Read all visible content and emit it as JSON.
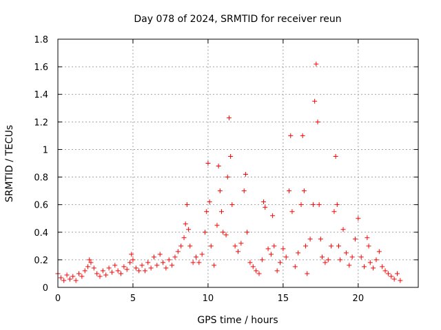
{
  "chart_data": {
    "type": "scatter",
    "title": "Day 078 of 2024, SRMTID for receiver reun",
    "xlabel": "GPS time / hours",
    "ylabel": "SRMTID / TECUs",
    "xlim": [
      0,
      24
    ],
    "ylim": [
      0,
      1.8
    ],
    "xticks": [
      0,
      5,
      10,
      15,
      20
    ],
    "xtick_labels": [
      "0",
      "5",
      "10",
      "15",
      "20"
    ],
    "yticks": [
      0,
      0.2,
      0.4,
      0.6,
      0.8,
      1.0,
      1.2,
      1.4,
      1.6,
      1.8
    ],
    "ytick_labels": [
      "0",
      "0.2",
      "0.4",
      "0.6",
      "0.8",
      "1",
      "1.2",
      "1.4",
      "1.6",
      "1.8"
    ],
    "grid": true,
    "marker": "+",
    "color": "#ff0000",
    "series": [
      {
        "name": "SRMTID",
        "points": [
          [
            0.0,
            0.1
          ],
          [
            0.2,
            0.07
          ],
          [
            0.4,
            0.05
          ],
          [
            0.6,
            0.09
          ],
          [
            0.8,
            0.06
          ],
          [
            1.0,
            0.08
          ],
          [
            1.2,
            0.05
          ],
          [
            1.4,
            0.1
          ],
          [
            1.6,
            0.08
          ],
          [
            1.8,
            0.12
          ],
          [
            2.0,
            0.15
          ],
          [
            2.1,
            0.2
          ],
          [
            2.2,
            0.18
          ],
          [
            2.4,
            0.14
          ],
          [
            2.6,
            0.1
          ],
          [
            2.8,
            0.08
          ],
          [
            3.0,
            0.12
          ],
          [
            3.2,
            0.09
          ],
          [
            3.4,
            0.14
          ],
          [
            3.6,
            0.11
          ],
          [
            3.8,
            0.16
          ],
          [
            4.0,
            0.12
          ],
          [
            4.2,
            0.1
          ],
          [
            4.4,
            0.15
          ],
          [
            4.6,
            0.13
          ],
          [
            4.8,
            0.18
          ],
          [
            4.9,
            0.24
          ],
          [
            5.0,
            0.2
          ],
          [
            5.2,
            0.14
          ],
          [
            5.4,
            0.12
          ],
          [
            5.6,
            0.16
          ],
          [
            5.8,
            0.12
          ],
          [
            6.0,
            0.18
          ],
          [
            6.2,
            0.14
          ],
          [
            6.4,
            0.22
          ],
          [
            6.6,
            0.16
          ],
          [
            6.8,
            0.24
          ],
          [
            7.0,
            0.18
          ],
          [
            7.2,
            0.14
          ],
          [
            7.4,
            0.2
          ],
          [
            7.6,
            0.16
          ],
          [
            7.8,
            0.22
          ],
          [
            8.0,
            0.26
          ],
          [
            8.2,
            0.3
          ],
          [
            8.4,
            0.36
          ],
          [
            8.5,
            0.46
          ],
          [
            8.6,
            0.6
          ],
          [
            8.7,
            0.42
          ],
          [
            8.8,
            0.3
          ],
          [
            9.0,
            0.18
          ],
          [
            9.2,
            0.22
          ],
          [
            9.4,
            0.18
          ],
          [
            9.6,
            0.24
          ],
          [
            9.8,
            0.4
          ],
          [
            9.9,
            0.55
          ],
          [
            10.0,
            0.9
          ],
          [
            10.1,
            0.62
          ],
          [
            10.2,
            0.3
          ],
          [
            10.4,
            0.16
          ],
          [
            10.6,
            0.45
          ],
          [
            10.7,
            0.88
          ],
          [
            10.8,
            0.7
          ],
          [
            10.9,
            0.55
          ],
          [
            11.0,
            0.4
          ],
          [
            11.2,
            0.38
          ],
          [
            11.3,
            0.8
          ],
          [
            11.4,
            1.23
          ],
          [
            11.5,
            0.95
          ],
          [
            11.6,
            0.6
          ],
          [
            11.8,
            0.3
          ],
          [
            12.0,
            0.26
          ],
          [
            12.2,
            0.32
          ],
          [
            12.4,
            0.7
          ],
          [
            12.5,
            0.82
          ],
          [
            12.6,
            0.4
          ],
          [
            12.8,
            0.18
          ],
          [
            13.0,
            0.15
          ],
          [
            13.2,
            0.12
          ],
          [
            13.4,
            0.1
          ],
          [
            13.6,
            0.2
          ],
          [
            13.7,
            0.62
          ],
          [
            13.8,
            0.58
          ],
          [
            14.0,
            0.28
          ],
          [
            14.2,
            0.24
          ],
          [
            14.3,
            0.52
          ],
          [
            14.4,
            0.3
          ],
          [
            14.6,
            0.12
          ],
          [
            14.8,
            0.18
          ],
          [
            15.0,
            0.28
          ],
          [
            15.2,
            0.22
          ],
          [
            15.4,
            0.7
          ],
          [
            15.5,
            1.1
          ],
          [
            15.6,
            0.55
          ],
          [
            15.8,
            0.15
          ],
          [
            16.0,
            0.25
          ],
          [
            16.2,
            0.6
          ],
          [
            16.3,
            1.1
          ],
          [
            16.4,
            0.7
          ],
          [
            16.5,
            0.3
          ],
          [
            16.6,
            0.1
          ],
          [
            16.8,
            0.35
          ],
          [
            17.0,
            0.6
          ],
          [
            17.1,
            1.35
          ],
          [
            17.2,
            1.62
          ],
          [
            17.3,
            1.2
          ],
          [
            17.4,
            0.6
          ],
          [
            17.5,
            0.35
          ],
          [
            17.6,
            0.22
          ],
          [
            17.8,
            0.18
          ],
          [
            18.0,
            0.2
          ],
          [
            18.2,
            0.3
          ],
          [
            18.4,
            0.55
          ],
          [
            18.5,
            0.95
          ],
          [
            18.6,
            0.6
          ],
          [
            18.7,
            0.3
          ],
          [
            18.8,
            0.2
          ],
          [
            19.0,
            0.42
          ],
          [
            19.2,
            0.25
          ],
          [
            19.4,
            0.16
          ],
          [
            19.6,
            0.22
          ],
          [
            19.8,
            0.35
          ],
          [
            20.0,
            0.5
          ],
          [
            20.2,
            0.22
          ],
          [
            20.4,
            0.15
          ],
          [
            20.6,
            0.36
          ],
          [
            20.7,
            0.3
          ],
          [
            20.8,
            0.18
          ],
          [
            21.0,
            0.14
          ],
          [
            21.2,
            0.2
          ],
          [
            21.4,
            0.26
          ],
          [
            21.6,
            0.15
          ],
          [
            21.8,
            0.12
          ],
          [
            22.0,
            0.1
          ],
          [
            22.2,
            0.08
          ],
          [
            22.4,
            0.06
          ],
          [
            22.6,
            0.1
          ],
          [
            22.8,
            0.05
          ]
        ]
      }
    ]
  }
}
